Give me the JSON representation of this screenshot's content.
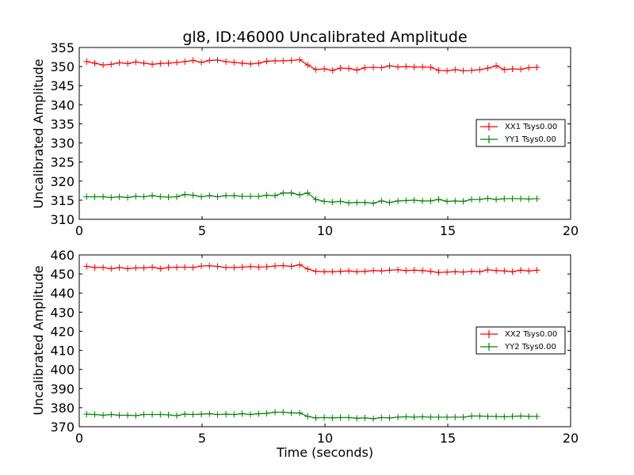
{
  "chart_data": [
    {
      "type": "line",
      "title": "gl8, ID:46000 Uncalibrated Amplitude",
      "xlabel": "",
      "ylabel": "Uncalibrated Amplitude",
      "xlim": [
        0,
        20
      ],
      "ylim": [
        310,
        355
      ],
      "xticks": [
        "0",
        "5",
        "10",
        "15",
        "20"
      ],
      "yticks": [
        "310",
        "315",
        "320",
        "325",
        "330",
        "335",
        "340",
        "345",
        "350",
        "355"
      ],
      "legend": "center-right",
      "grid": false,
      "series": [
        {
          "name": "XX1 Tsys0.00",
          "color": "#ff0000",
          "x": [
            0.3,
            0.63,
            0.97,
            1.3,
            1.63,
            1.97,
            2.3,
            2.63,
            2.97,
            3.3,
            3.63,
            3.97,
            4.3,
            4.63,
            4.97,
            5.3,
            5.63,
            5.97,
            6.3,
            6.63,
            6.97,
            7.3,
            7.63,
            7.97,
            8.3,
            8.63,
            8.97,
            9.3,
            9.63,
            9.97,
            10.3,
            10.63,
            10.97,
            11.3,
            11.63,
            11.97,
            12.3,
            12.63,
            12.97,
            13.3,
            13.63,
            13.97,
            14.3,
            14.63,
            14.97,
            15.3,
            15.63,
            15.97,
            16.3,
            16.63,
            16.97,
            17.3,
            17.63,
            17.97,
            18.3,
            18.63
          ],
          "y": [
            351.3,
            350.9,
            350.4,
            350.6,
            351.0,
            350.8,
            351.2,
            350.9,
            350.6,
            350.8,
            350.9,
            351.1,
            351.3,
            351.6,
            351.1,
            351.6,
            351.7,
            351.3,
            351.1,
            350.9,
            350.7,
            350.9,
            351.4,
            351.5,
            351.5,
            351.6,
            351.8,
            350.4,
            349.2,
            349.4,
            349.0,
            349.6,
            349.5,
            349.1,
            349.7,
            349.8,
            349.7,
            350.2,
            349.9,
            350.0,
            349.9,
            349.9,
            349.8,
            349.0,
            348.9,
            349.2,
            348.9,
            349.0,
            349.2,
            349.6,
            350.2,
            349.2,
            349.4,
            349.3,
            349.7,
            349.8
          ]
        },
        {
          "name": "YY1 Tsys0.00",
          "color": "#008000",
          "x": [
            0.3,
            0.63,
            0.97,
            1.3,
            1.63,
            1.97,
            2.3,
            2.63,
            2.97,
            3.3,
            3.63,
            3.97,
            4.3,
            4.63,
            4.97,
            5.3,
            5.63,
            5.97,
            6.3,
            6.63,
            6.97,
            7.3,
            7.63,
            7.97,
            8.3,
            8.63,
            8.97,
            9.3,
            9.63,
            9.97,
            10.3,
            10.63,
            10.97,
            11.3,
            11.63,
            11.97,
            12.3,
            12.63,
            12.97,
            13.3,
            13.63,
            13.97,
            14.3,
            14.63,
            14.97,
            15.3,
            15.63,
            15.97,
            16.3,
            16.63,
            16.97,
            17.3,
            17.63,
            17.97,
            18.3,
            18.63
          ],
          "y": [
            315.9,
            315.9,
            315.9,
            315.7,
            315.9,
            315.7,
            316.0,
            315.9,
            316.2,
            315.9,
            315.8,
            315.9,
            316.5,
            316.3,
            315.9,
            316.2,
            315.9,
            316.2,
            316.2,
            316.0,
            316.0,
            316.0,
            316.3,
            316.2,
            316.9,
            316.9,
            316.4,
            316.9,
            315.2,
            314.7,
            314.5,
            314.7,
            314.3,
            314.4,
            314.4,
            314.2,
            314.8,
            314.4,
            314.8,
            314.9,
            315.0,
            314.8,
            314.8,
            315.2,
            314.7,
            314.8,
            314.7,
            315.2,
            315.2,
            315.5,
            315.2,
            315.4,
            315.4,
            315.4,
            315.3,
            315.4
          ]
        }
      ]
    },
    {
      "type": "line",
      "title": "",
      "xlabel": "Time (seconds)",
      "ylabel": "Uncalibrated Amplitude",
      "xlim": [
        0,
        20
      ],
      "ylim": [
        370,
        460
      ],
      "xticks": [
        "0",
        "5",
        "10",
        "15",
        "20"
      ],
      "yticks": [
        "370",
        "380",
        "390",
        "400",
        "410",
        "420",
        "430",
        "440",
        "450",
        "460"
      ],
      "legend": "center-right",
      "grid": false,
      "series": [
        {
          "name": "XX2 Tsys0.00",
          "color": "#ff0000",
          "x": [
            0.3,
            0.63,
            0.97,
            1.3,
            1.63,
            1.97,
            2.3,
            2.63,
            2.97,
            3.3,
            3.63,
            3.97,
            4.3,
            4.63,
            4.97,
            5.3,
            5.63,
            5.97,
            6.3,
            6.63,
            6.97,
            7.3,
            7.63,
            7.97,
            8.3,
            8.63,
            8.97,
            9.3,
            9.63,
            9.97,
            10.3,
            10.63,
            10.97,
            11.3,
            11.63,
            11.97,
            12.3,
            12.63,
            12.97,
            13.3,
            13.63,
            13.97,
            14.3,
            14.63,
            14.97,
            15.3,
            15.63,
            15.97,
            16.3,
            16.63,
            16.97,
            17.3,
            17.63,
            17.97,
            18.3,
            18.63
          ],
          "y": [
            454.0,
            453.4,
            453.4,
            452.8,
            453.4,
            452.8,
            453.2,
            453.2,
            453.6,
            452.8,
            453.4,
            453.5,
            453.6,
            453.4,
            454.2,
            454.3,
            454.0,
            453.4,
            453.4,
            453.6,
            453.9,
            453.6,
            453.8,
            454.2,
            454.4,
            454.0,
            454.8,
            452.6,
            451.4,
            451.2,
            451.2,
            451.4,
            451.6,
            451.2,
            451.4,
            451.8,
            451.6,
            452.0,
            452.2,
            451.8,
            452.0,
            451.8,
            451.4,
            450.8,
            451.0,
            451.2,
            451.0,
            451.4,
            451.2,
            452.2,
            451.8,
            451.6,
            451.2,
            452.0,
            451.6,
            452.0
          ]
        },
        {
          "name": "YY2 Tsys0.00",
          "color": "#008000",
          "x": [
            0.3,
            0.63,
            0.97,
            1.3,
            1.63,
            1.97,
            2.3,
            2.63,
            2.97,
            3.3,
            3.63,
            3.97,
            4.3,
            4.63,
            4.97,
            5.3,
            5.63,
            5.97,
            6.3,
            6.63,
            6.97,
            7.3,
            7.63,
            7.97,
            8.3,
            8.63,
            8.97,
            9.3,
            9.63,
            9.97,
            10.3,
            10.63,
            10.97,
            11.3,
            11.63,
            11.97,
            12.3,
            12.63,
            12.97,
            13.3,
            13.63,
            13.97,
            14.3,
            14.63,
            14.97,
            15.3,
            15.63,
            15.97,
            16.3,
            16.63,
            16.97,
            17.3,
            17.63,
            17.97,
            18.3,
            18.63
          ],
          "y": [
            376.6,
            376.4,
            376.0,
            376.4,
            376.0,
            376.0,
            375.8,
            376.4,
            376.4,
            376.4,
            376.2,
            375.8,
            376.6,
            376.4,
            376.6,
            376.8,
            376.4,
            376.6,
            376.4,
            376.8,
            376.4,
            376.8,
            377.0,
            377.6,
            377.6,
            377.2,
            377.2,
            375.4,
            374.6,
            374.8,
            374.6,
            374.8,
            374.8,
            374.4,
            374.6,
            374.2,
            374.8,
            374.6,
            375.0,
            375.2,
            375.0,
            375.2,
            375.0,
            375.0,
            375.0,
            375.0,
            375.0,
            375.6,
            375.6,
            375.4,
            375.4,
            375.2,
            375.4,
            375.6,
            375.4,
            375.4
          ]
        }
      ]
    }
  ]
}
